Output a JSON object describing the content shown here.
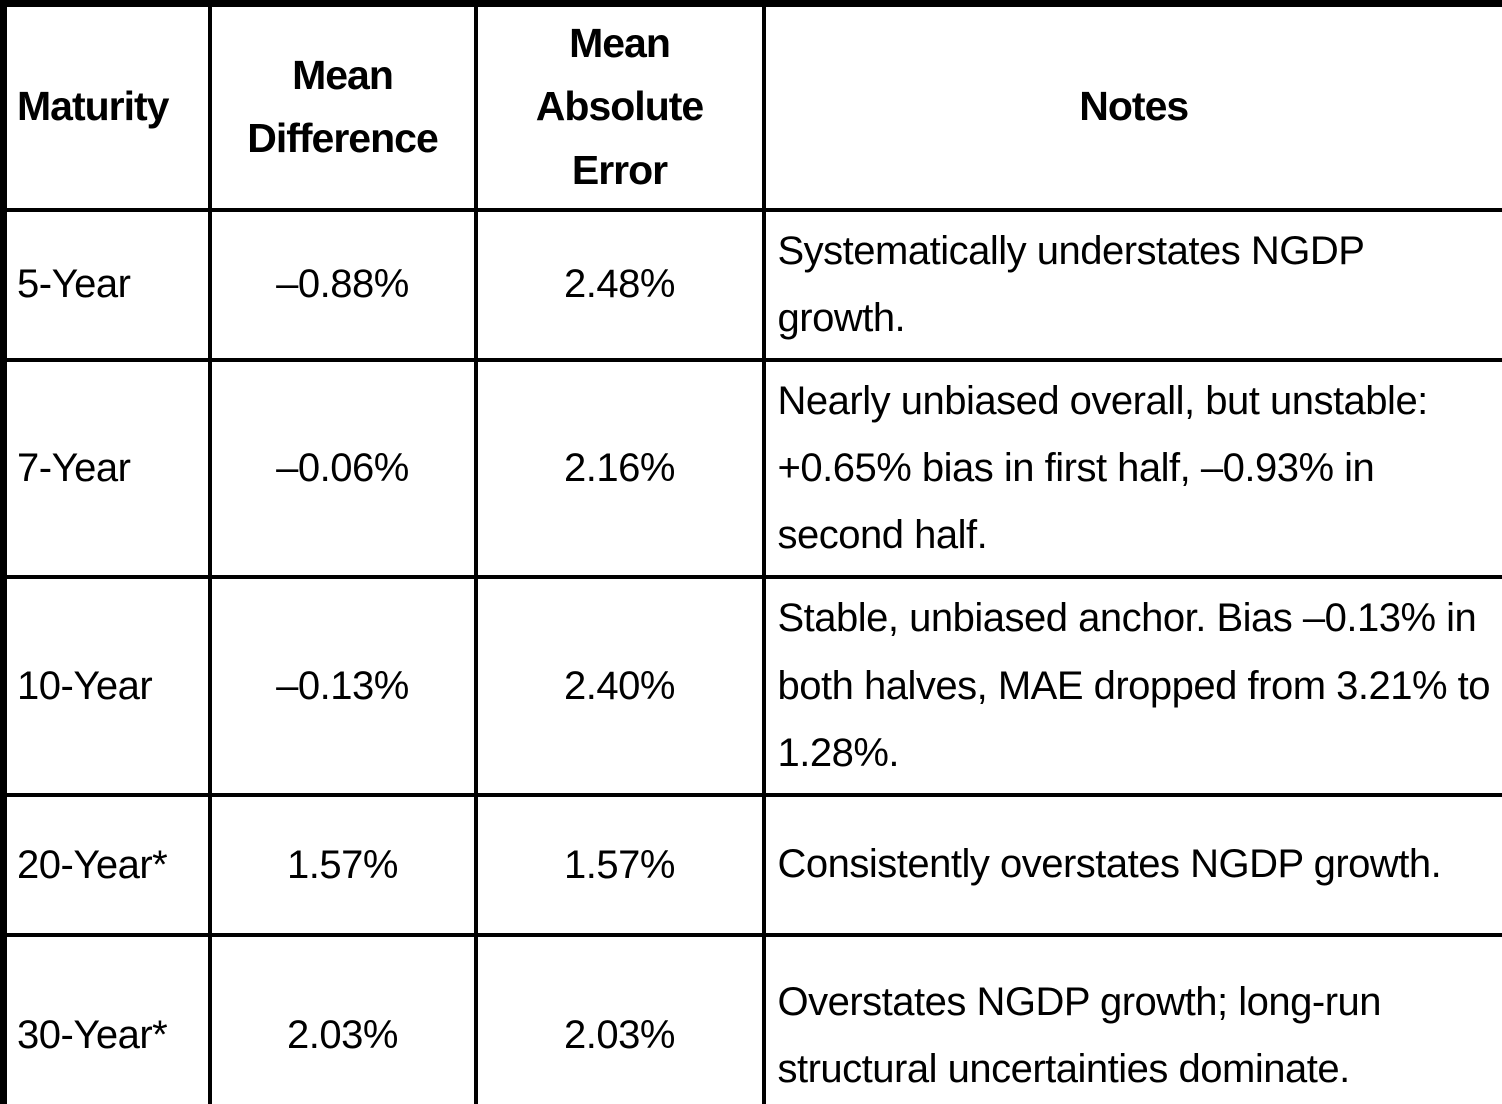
{
  "table": {
    "columns": {
      "maturity": "Maturity",
      "mean_difference": "Mean Difference",
      "mean_absolute_error": "Mean Absolute Error",
      "notes": "Notes"
    },
    "rows": [
      {
        "maturity": "5-Year",
        "mean_difference": "–0.88%",
        "mean_absolute_error": "2.48%",
        "notes": "Systematically understates NGDP growth."
      },
      {
        "maturity": "7-Year",
        "mean_difference": "–0.06%",
        "mean_absolute_error": "2.16%",
        "notes": "Nearly unbiased overall, but unstable: +0.65% bias in first half, –0.93% in second half."
      },
      {
        "maturity": "10-Year",
        "mean_difference": "–0.13%",
        "mean_absolute_error": "2.40%",
        "notes": "Stable, unbiased anchor. Bias –0.13% in both halves, MAE dropped from 3.21% to 1.28%."
      },
      {
        "maturity": "20-Year*",
        "mean_difference": "1.57%",
        "mean_absolute_error": "1.57%",
        "notes": "Consistently overstates NGDP growth."
      },
      {
        "maturity": "30-Year*",
        "mean_difference": "2.03%",
        "mean_absolute_error": "2.03%",
        "notes": "Overstates NGDP growth; long-run structural uncertainties dominate."
      }
    ],
    "colors": {
      "border": "#000000",
      "text": "#000000",
      "background": "#ffffff"
    }
  }
}
